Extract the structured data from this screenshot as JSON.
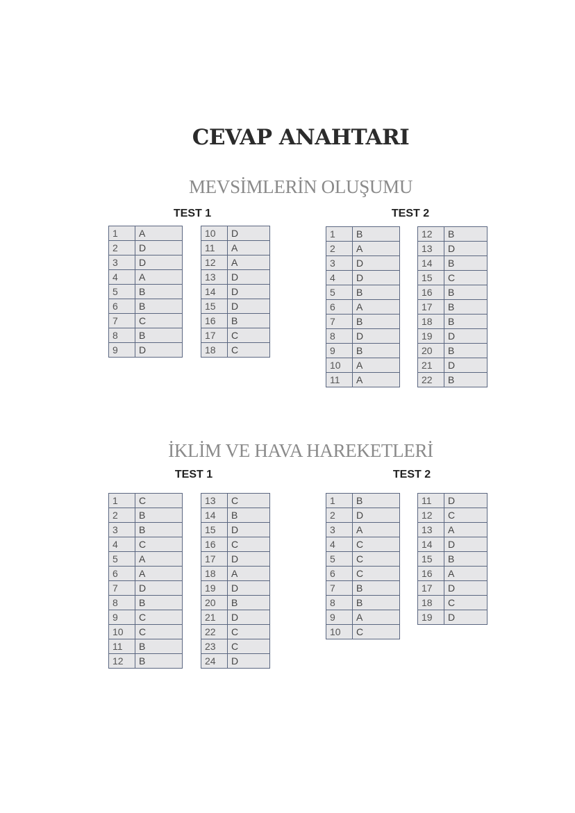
{
  "title": "CEVAP ANAHTARI",
  "sections": [
    {
      "heading": "MEVSİMLERİN OLUŞUMU",
      "tests": [
        {
          "label": "TEST 1",
          "columns": [
            [
              [
                "1",
                "A"
              ],
              [
                "2",
                "D"
              ],
              [
                "3",
                "D"
              ],
              [
                "4",
                "A"
              ],
              [
                "5",
                "B"
              ],
              [
                "6",
                "B"
              ],
              [
                "7",
                "C"
              ],
              [
                "8",
                "B"
              ],
              [
                "9",
                "D"
              ]
            ],
            [
              [
                "10",
                "D"
              ],
              [
                "11",
                "A"
              ],
              [
                "12",
                "A"
              ],
              [
                "13",
                "D"
              ],
              [
                "14",
                "D"
              ],
              [
                "15",
                "D"
              ],
              [
                "16",
                "B"
              ],
              [
                "17",
                "C"
              ],
              [
                "18",
                "C"
              ]
            ]
          ]
        },
        {
          "label": "TEST 2",
          "columns": [
            [
              [
                "1",
                "B"
              ],
              [
                "2",
                "A"
              ],
              [
                "3",
                "D"
              ],
              [
                "4",
                "D"
              ],
              [
                "5",
                "B"
              ],
              [
                "6",
                "A"
              ],
              [
                "7",
                "B"
              ],
              [
                "8",
                "D"
              ],
              [
                "9",
                "B"
              ],
              [
                "10",
                "A"
              ],
              [
                "11",
                "A"
              ]
            ],
            [
              [
                "12",
                "B"
              ],
              [
                "13",
                "D"
              ],
              [
                "14",
                "B"
              ],
              [
                "15",
                "C"
              ],
              [
                "16",
                "B"
              ],
              [
                "17",
                "B"
              ],
              [
                "18",
                "B"
              ],
              [
                "19",
                "D"
              ],
              [
                "20",
                "B"
              ],
              [
                "21",
                "D"
              ],
              [
                "22",
                "B"
              ]
            ]
          ]
        }
      ]
    },
    {
      "heading": "İKLİM VE HAVA HAREKETLERİ",
      "tests": [
        {
          "label": "TEST 1",
          "columns": [
            [
              [
                "1",
                "C"
              ],
              [
                "2",
                "B"
              ],
              [
                "3",
                "B"
              ],
              [
                "4",
                "C"
              ],
              [
                "5",
                "A"
              ],
              [
                "6",
                "A"
              ],
              [
                "7",
                "D"
              ],
              [
                "8",
                "B"
              ],
              [
                "9",
                "C"
              ],
              [
                "10",
                "C"
              ],
              [
                "11",
                "B"
              ],
              [
                "12",
                "B"
              ]
            ],
            [
              [
                "13",
                "C"
              ],
              [
                "14",
                "B"
              ],
              [
                "15",
                "D"
              ],
              [
                "16",
                "C"
              ],
              [
                "17",
                "D"
              ],
              [
                "18",
                "A"
              ],
              [
                "19",
                "D"
              ],
              [
                "20",
                "B"
              ],
              [
                "21",
                "D"
              ],
              [
                "22",
                "C"
              ],
              [
                "23",
                "C"
              ],
              [
                "24",
                "D"
              ]
            ]
          ]
        },
        {
          "label": "TEST 2",
          "columns": [
            [
              [
                "1",
                "B"
              ],
              [
                "2",
                "D"
              ],
              [
                "3",
                "A"
              ],
              [
                "4",
                "C"
              ],
              [
                "5",
                "C"
              ],
              [
                "6",
                "C"
              ],
              [
                "7",
                "B"
              ],
              [
                "8",
                "B"
              ],
              [
                "9",
                "A"
              ],
              [
                "10",
                "C"
              ]
            ],
            [
              [
                "11",
                "D"
              ],
              [
                "12",
                "C"
              ],
              [
                "13",
                "A"
              ],
              [
                "14",
                "D"
              ],
              [
                "15",
                "B"
              ],
              [
                "16",
                "A"
              ],
              [
                "17",
                "D"
              ],
              [
                "18",
                "C"
              ],
              [
                "19",
                "D"
              ]
            ]
          ]
        }
      ]
    }
  ]
}
